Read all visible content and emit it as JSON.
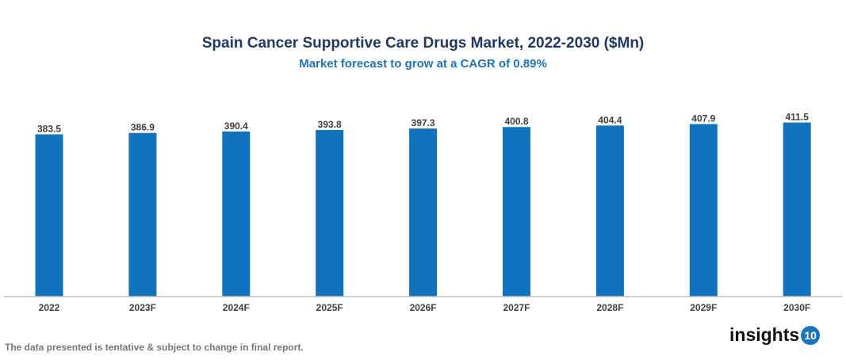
{
  "chart_data": {
    "type": "bar",
    "title": "Spain Cancer Supportive Care Drugs Market, 2022-2030 ($Mn)",
    "subtitle": "Market forecast to grow at a CAGR of 0.89%",
    "categories": [
      "2022",
      "2023F",
      "2024F",
      "2025F",
      "2026F",
      "2027F",
      "2028F",
      "2029F",
      "2030F"
    ],
    "values": [
      383.5,
      386.9,
      390.4,
      393.8,
      397.3,
      400.8,
      404.4,
      407.9,
      411.5
    ],
    "ylim": [
      0,
      420
    ],
    "grid": false,
    "bar_color": "#1173bd",
    "xlabel": "",
    "ylabel": ""
  },
  "footnote": "The data presented is tentative & subject to change in final report.",
  "logo": {
    "text": "insights",
    "badge": "10"
  }
}
